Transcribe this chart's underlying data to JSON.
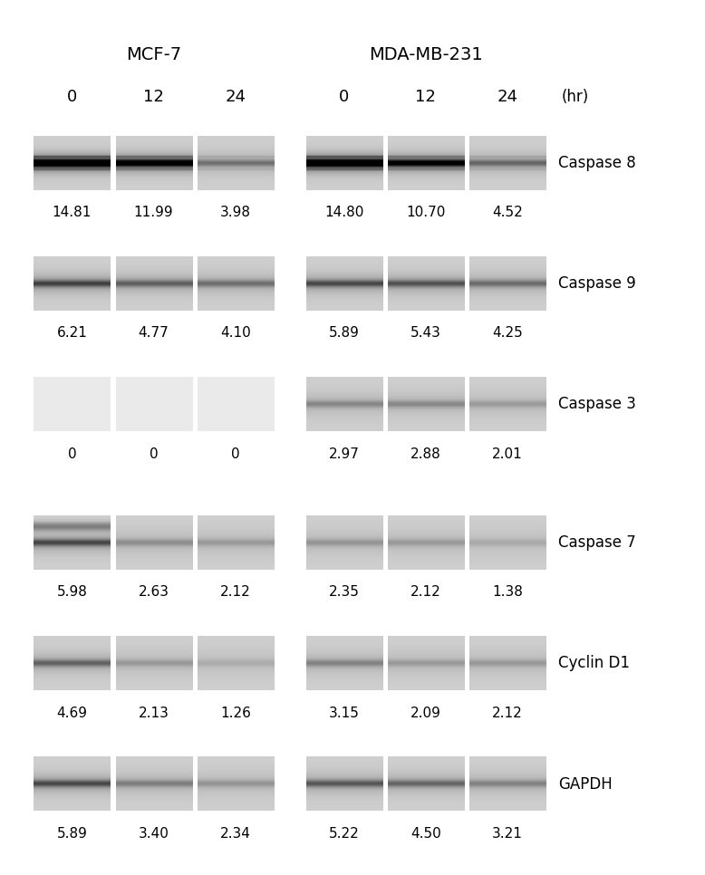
{
  "title_mcf7": "MCF-7",
  "title_mda": "MDA-MB-231",
  "time_labels": [
    "0",
    "12",
    "24",
    "0",
    "12",
    "24"
  ],
  "hr_label": "(hr)",
  "proteins": [
    "Caspase 8",
    "Caspase 9",
    "Caspase 3",
    "Caspase 7",
    "Cyclin D1",
    "GAPDH"
  ],
  "values": {
    "Caspase 8": [
      14.81,
      11.99,
      3.98,
      14.8,
      10.7,
      4.52
    ],
    "Caspase 9": [
      6.21,
      4.77,
      4.1,
      5.89,
      5.43,
      4.25
    ],
    "Caspase 3": [
      0,
      0,
      0,
      2.97,
      2.88,
      2.01
    ],
    "Caspase 7": [
      5.98,
      2.63,
      2.12,
      2.35,
      2.12,
      1.38
    ],
    "Cyclin D1": [
      4.69,
      2.13,
      1.26,
      3.15,
      2.09,
      2.12
    ],
    "GAPDH": [
      5.89,
      3.4,
      2.34,
      5.22,
      4.5,
      3.21
    ]
  },
  "fig_bg": "#ffffff",
  "value_fontsize": 11,
  "label_fontsize": 13,
  "header_fontsize": 14,
  "band_bg_gray": 0.82,
  "max_ref": 15.0
}
